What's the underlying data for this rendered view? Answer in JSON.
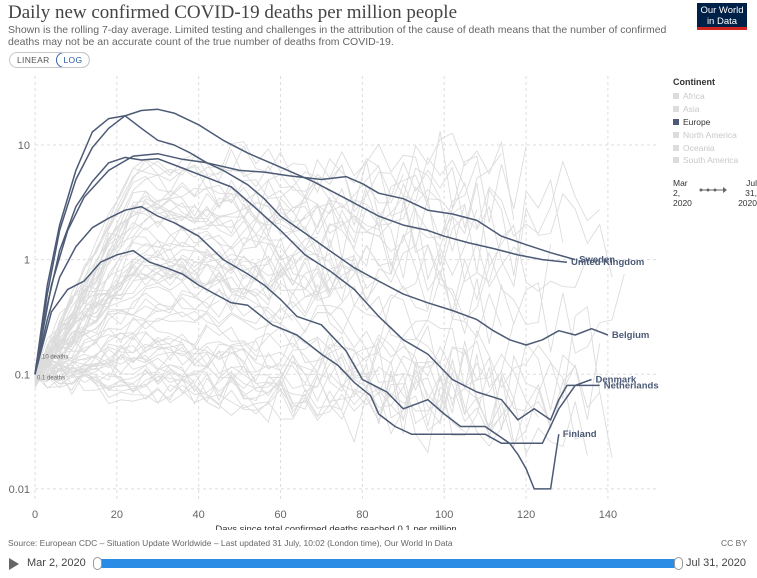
{
  "header": {
    "title": "Daily new confirmed COVID-19 deaths per million people",
    "subtitle": "Shown is the rolling 7-day average. Limited testing and challenges in the attribution of the cause of death means that the number of confirmed deaths may not be an accurate count of the true number of deaths from COVID-19.",
    "logo_line1": "Our World",
    "logo_line2": "in Data"
  },
  "controls": {
    "linear_label": "LINEAR",
    "log_label": "LOG",
    "active_scale": "log"
  },
  "legend": {
    "title": "Continent",
    "items": [
      {
        "label": "Africa",
        "active": false
      },
      {
        "label": "Asia",
        "active": false
      },
      {
        "label": "Europe",
        "active": true
      },
      {
        "label": "North America",
        "active": false
      },
      {
        "label": "Oceania",
        "active": false
      },
      {
        "label": "South America",
        "active": false
      }
    ],
    "time_start": "Mar 2, 2020",
    "time_end": "Jul 31, 2020",
    "time_start_lines": [
      "Mar",
      "2,",
      "2020"
    ],
    "time_end_lines": [
      "Jul",
      "31,",
      "2020"
    ]
  },
  "footer": {
    "source": "Source: European CDC – Situation Update Worldwide – Last updated 31 July, 10:02 (London time), Our World In Data",
    "license": "CC BY"
  },
  "timeline": {
    "start": "Mar 2, 2020",
    "end": "Jul 31, 2020"
  },
  "chart_data": {
    "type": "line",
    "title": "Daily new confirmed COVID-19 deaths per million people",
    "xlabel": "Days since total confirmed deaths reached 0.1 per million",
    "ylabel": "",
    "x_scale": "linear",
    "y_scale": "log",
    "xlim": [
      0,
      152
    ],
    "ylim": [
      0.008,
      40
    ],
    "x_ticks": [
      0,
      20,
      40,
      60,
      80,
      100,
      120,
      140
    ],
    "y_ticks": [
      0.01,
      0.1,
      1,
      10
    ],
    "y_tick_labels": [
      "0.01",
      "0.1",
      "1",
      "10"
    ],
    "grid": true,
    "legend_position": "right",
    "annotations": [
      "0.10 deaths",
      "0.1 deaths"
    ],
    "highlight_color": "#4c5a76",
    "background_color": "#dcdcdc",
    "series": [
      {
        "name": "United Kingdom",
        "x": [
          0,
          3,
          6,
          10,
          14,
          18,
          22,
          26,
          30,
          34,
          40,
          46,
          52,
          60,
          68,
          76,
          84,
          90,
          96,
          100,
          106,
          112,
          118,
          124,
          130
        ],
        "y": [
          0.1,
          0.5,
          1.8,
          5,
          9.5,
          14,
          18,
          20,
          20.5,
          19,
          15,
          11,
          8.5,
          6.4,
          4.8,
          3.4,
          2.4,
          2.0,
          1.8,
          1.6,
          1.4,
          1.25,
          1.1,
          1.0,
          0.95
        ]
      },
      {
        "name": "Sweden",
        "x": [
          0,
          4,
          8,
          12,
          18,
          24,
          30,
          36,
          42,
          50,
          56,
          62,
          70,
          76,
          80,
          84,
          90,
          96,
          102,
          108,
          114,
          120,
          126,
          132
        ],
        "y": [
          0.1,
          0.6,
          1.8,
          3.5,
          6,
          8,
          8.4,
          7.5,
          7,
          6,
          5.8,
          5.4,
          5,
          5.3,
          4.6,
          3.8,
          3.4,
          2.7,
          2.5,
          2.2,
          1.6,
          1.35,
          1.15,
          1.0
        ]
      },
      {
        "name": "Belgium",
        "x": [
          0,
          3,
          6,
          10,
          14,
          18,
          22,
          26,
          30,
          34,
          38,
          42,
          46,
          52,
          56,
          60,
          66,
          72,
          78,
          84,
          90,
          96,
          102,
          108,
          112,
          116,
          120,
          124,
          128,
          132,
          136,
          140
        ],
        "y": [
          0.1,
          0.6,
          2,
          6,
          13,
          17,
          18,
          14,
          11,
          10,
          8.5,
          7,
          6,
          4.5,
          3.4,
          2.4,
          1.7,
          1.2,
          0.85,
          0.65,
          0.5,
          0.42,
          0.36,
          0.3,
          0.24,
          0.2,
          0.18,
          0.2,
          0.24,
          0.22,
          0.25,
          0.22
        ]
      },
      {
        "name": "Netherlands",
        "x": [
          0,
          3,
          6,
          10,
          14,
          18,
          22,
          26,
          30,
          36,
          42,
          48,
          54,
          60,
          66,
          72,
          78,
          84,
          90,
          96,
          102,
          108,
          114,
          118,
          122,
          126,
          128,
          130,
          134,
          138
        ],
        "y": [
          0.1,
          0.4,
          1.2,
          2.9,
          4.8,
          7,
          7.8,
          7.4,
          7.6,
          6.3,
          5.2,
          4.3,
          2.8,
          1.8,
          1.1,
          0.8,
          0.55,
          0.32,
          0.2,
          0.15,
          0.09,
          0.07,
          0.06,
          0.04,
          0.05,
          0.04,
          0.06,
          0.08,
          0.08,
          0.08
        ]
      },
      {
        "name": "Denmark",
        "x": [
          0,
          3,
          6,
          10,
          14,
          18,
          22,
          26,
          30,
          34,
          40,
          46,
          52,
          56,
          60,
          64,
          70,
          76,
          80,
          86,
          90,
          96,
          100,
          104,
          110,
          116,
          120,
          124,
          128,
          132,
          136
        ],
        "y": [
          0.1,
          0.3,
          0.7,
          1.3,
          1.9,
          2.3,
          2.7,
          2.9,
          2.4,
          2.1,
          1.6,
          1.0,
          0.75,
          0.6,
          0.45,
          0.32,
          0.27,
          0.16,
          0.09,
          0.07,
          0.05,
          0.06,
          0.045,
          0.035,
          0.035,
          0.025,
          0.025,
          0.025,
          0.05,
          0.08,
          0.09
        ]
      },
      {
        "name": "Finland",
        "x": [
          0,
          4,
          8,
          12,
          16,
          20,
          24,
          28,
          32,
          36,
          40,
          44,
          48,
          52,
          58,
          64,
          70,
          74,
          78,
          82,
          84,
          88,
          92,
          98,
          104,
          110,
          114,
          116,
          118,
          120,
          122,
          124,
          126,
          128
        ],
        "y": [
          0.1,
          0.35,
          0.55,
          0.65,
          0.95,
          1.1,
          1.2,
          0.95,
          0.85,
          0.75,
          0.6,
          0.5,
          0.42,
          0.4,
          0.27,
          0.22,
          0.15,
          0.12,
          0.085,
          0.065,
          0.045,
          0.035,
          0.03,
          0.03,
          0.03,
          0.03,
          0.025,
          0.025,
          0.02,
          0.015,
          0.01,
          0.01,
          0.01,
          0.03
        ]
      }
    ]
  }
}
